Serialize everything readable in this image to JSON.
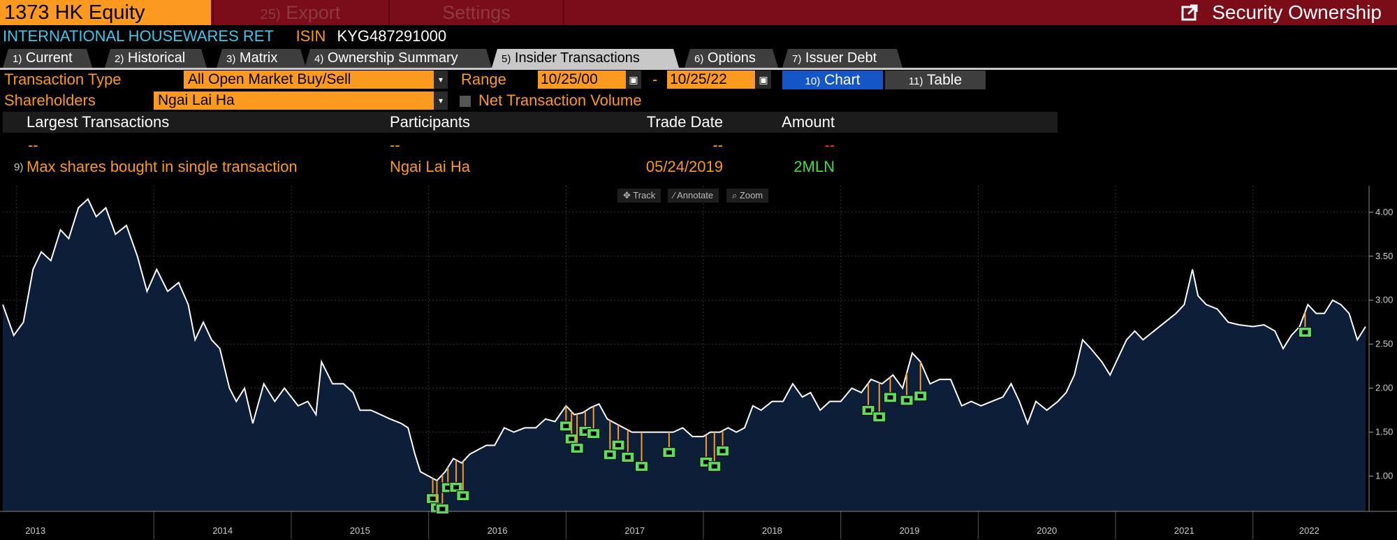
{
  "header": {
    "ticker": "1373 HK Equity",
    "export_num": "25)",
    "export_label": "Export",
    "settings_label": "Settings",
    "function_title": "Security Ownership"
  },
  "security": {
    "name": "INTERNATIONAL HOUSEWARES RET",
    "isin_label": "ISIN",
    "isin": "KYG487291000"
  },
  "tabs": [
    {
      "num": "1)",
      "label": "Current"
    },
    {
      "num": "2)",
      "label": "Historical"
    },
    {
      "num": "3)",
      "label": "Matrix"
    },
    {
      "num": "4)",
      "label": "Ownership Summary"
    },
    {
      "num": "5)",
      "label": "Insider Transactions",
      "active": true
    },
    {
      "num": "6)",
      "label": "Options"
    },
    {
      "num": "7)",
      "label": "Issuer Debt"
    }
  ],
  "filters": {
    "transaction_type_label": "Transaction Type",
    "transaction_type_value": "All Open Market Buy/Sell",
    "range_label": "Range",
    "range_from": "10/25/00",
    "range_sep": "-",
    "range_to": "10/25/22",
    "chart_btn_num": "10)",
    "chart_btn": "Chart",
    "table_btn_num": "11)",
    "table_btn": "Table",
    "shareholders_label": "Shareholders",
    "shareholders_value": "Ngai Lai Ha",
    "net_volume_label": "Net Transaction Volume"
  },
  "largest_table": {
    "headers": [
      "Largest Transactions",
      "Participants",
      "Trade Date",
      "Amount"
    ],
    "rows": [
      {
        "num": "",
        "label": "--",
        "participant": "--",
        "date": "--",
        "amount": "--"
      },
      {
        "num": "9)",
        "label": "Max shares bought in single transaction",
        "participant": "Ngai Lai Ha",
        "date": "05/24/2019",
        "amount": "2MLN"
      }
    ]
  },
  "chart_tools": [
    "Track",
    "Annotate",
    "Zoom"
  ],
  "colors": {
    "orange": "#fb9a1e",
    "header_red": "#7a0d18",
    "cyan": "#3ec8ec",
    "green": "#44dd44",
    "red": "#ff3333",
    "chart_fill": "#0d1e38",
    "buy_marker": "#5fdc5f"
  },
  "chart_data": {
    "type": "area",
    "x_ticks": [
      "2013",
      "2014",
      "2015",
      "2016",
      "2017",
      "2018",
      "2019",
      "2020",
      "2021",
      "2022"
    ],
    "y_ticks": [
      "1.00",
      "1.50",
      "2.00",
      "2.50",
      "3.00",
      "3.50",
      "4.00"
    ],
    "ylim": [
      0.6,
      4.3
    ],
    "xlim": [
      2012.9,
      2022.82
    ],
    "grid": true,
    "series": [
      {
        "values": [
          [
            2012.9,
            2.95
          ],
          [
            2012.98,
            2.6
          ],
          [
            2013.05,
            2.75
          ],
          [
            2013.12,
            3.35
          ],
          [
            2013.18,
            3.55
          ],
          [
            2013.25,
            3.45
          ],
          [
            2013.32,
            3.8
          ],
          [
            2013.38,
            3.7
          ],
          [
            2013.45,
            4.05
          ],
          [
            2013.52,
            4.15
          ],
          [
            2013.58,
            3.95
          ],
          [
            2013.65,
            4.05
          ],
          [
            2013.72,
            3.75
          ],
          [
            2013.8,
            3.85
          ],
          [
            2013.88,
            3.5
          ],
          [
            2013.95,
            3.1
          ],
          [
            2014.02,
            3.35
          ],
          [
            2014.1,
            3.1
          ],
          [
            2014.18,
            3.2
          ],
          [
            2014.25,
            2.95
          ],
          [
            2014.3,
            2.55
          ],
          [
            2014.36,
            2.75
          ],
          [
            2014.42,
            2.55
          ],
          [
            2014.48,
            2.45
          ],
          [
            2014.55,
            2.0
          ],
          [
            2014.6,
            1.85
          ],
          [
            2014.66,
            2.0
          ],
          [
            2014.72,
            1.6
          ],
          [
            2014.8,
            2.05
          ],
          [
            2014.88,
            1.85
          ],
          [
            2014.95,
            2.0
          ],
          [
            2015.05,
            1.8
          ],
          [
            2015.12,
            1.85
          ],
          [
            2015.18,
            1.7
          ],
          [
            2015.22,
            2.3
          ],
          [
            2015.3,
            2.05
          ],
          [
            2015.38,
            2.05
          ],
          [
            2015.45,
            1.95
          ],
          [
            2015.5,
            1.75
          ],
          [
            2015.58,
            1.75
          ],
          [
            2015.65,
            1.7
          ],
          [
            2015.72,
            1.65
          ],
          [
            2015.8,
            1.6
          ],
          [
            2015.85,
            1.55
          ],
          [
            2015.9,
            1.25
          ],
          [
            2015.94,
            1.05
          ],
          [
            2016.0,
            1.0
          ],
          [
            2016.06,
            0.95
          ],
          [
            2016.12,
            1.05
          ],
          [
            2016.18,
            1.2
          ],
          [
            2016.24,
            1.15
          ],
          [
            2016.3,
            1.25
          ],
          [
            2016.36,
            1.3
          ],
          [
            2016.42,
            1.35
          ],
          [
            2016.48,
            1.35
          ],
          [
            2016.55,
            1.55
          ],
          [
            2016.62,
            1.5
          ],
          [
            2016.7,
            1.55
          ],
          [
            2016.78,
            1.55
          ],
          [
            2016.85,
            1.65
          ],
          [
            2016.92,
            1.62
          ],
          [
            2017.0,
            1.8
          ],
          [
            2017.06,
            1.7
          ],
          [
            2017.12,
            1.72
          ],
          [
            2017.18,
            1.78
          ],
          [
            2017.24,
            1.82
          ],
          [
            2017.3,
            1.65
          ],
          [
            2017.36,
            1.6
          ],
          [
            2017.42,
            1.55
          ],
          [
            2017.48,
            1.5
          ],
          [
            2017.55,
            1.5
          ],
          [
            2017.62,
            1.5
          ],
          [
            2017.7,
            1.5
          ],
          [
            2017.78,
            1.5
          ],
          [
            2017.85,
            1.55
          ],
          [
            2017.92,
            1.45
          ],
          [
            2018.0,
            1.45
          ],
          [
            2018.05,
            1.5
          ],
          [
            2018.12,
            1.5
          ],
          [
            2018.18,
            1.55
          ],
          [
            2018.24,
            1.5
          ],
          [
            2018.3,
            1.55
          ],
          [
            2018.36,
            1.8
          ],
          [
            2018.42,
            1.75
          ],
          [
            2018.5,
            1.85
          ],
          [
            2018.58,
            1.85
          ],
          [
            2018.65,
            2.05
          ],
          [
            2018.72,
            1.9
          ],
          [
            2018.78,
            1.95
          ],
          [
            2018.85,
            1.75
          ],
          [
            2018.92,
            1.85
          ],
          [
            2019.0,
            1.85
          ],
          [
            2019.08,
            2.0
          ],
          [
            2019.15,
            1.95
          ],
          [
            2019.22,
            2.1
          ],
          [
            2019.3,
            2.05
          ],
          [
            2019.38,
            2.15
          ],
          [
            2019.45,
            2.0
          ],
          [
            2019.52,
            2.4
          ],
          [
            2019.58,
            2.3
          ],
          [
            2019.65,
            2.05
          ],
          [
            2019.72,
            2.1
          ],
          [
            2019.8,
            2.1
          ],
          [
            2019.88,
            1.8
          ],
          [
            2019.95,
            1.85
          ],
          [
            2020.02,
            1.8
          ],
          [
            2020.1,
            1.85
          ],
          [
            2020.18,
            1.9
          ],
          [
            2020.24,
            2.05
          ],
          [
            2020.3,
            1.85
          ],
          [
            2020.36,
            1.6
          ],
          [
            2020.42,
            1.85
          ],
          [
            2020.5,
            1.75
          ],
          [
            2020.58,
            1.85
          ],
          [
            2020.64,
            1.95
          ],
          [
            2020.7,
            2.15
          ],
          [
            2020.76,
            2.55
          ],
          [
            2020.82,
            2.45
          ],
          [
            2020.9,
            2.3
          ],
          [
            2020.96,
            2.15
          ],
          [
            2021.02,
            2.35
          ],
          [
            2021.08,
            2.55
          ],
          [
            2021.14,
            2.65
          ],
          [
            2021.2,
            2.55
          ],
          [
            2021.28,
            2.65
          ],
          [
            2021.36,
            2.75
          ],
          [
            2021.44,
            2.85
          ],
          [
            2021.5,
            2.95
          ],
          [
            2021.56,
            3.35
          ],
          [
            2021.6,
            3.05
          ],
          [
            2021.66,
            2.95
          ],
          [
            2021.74,
            2.9
          ],
          [
            2021.82,
            2.75
          ],
          [
            2021.9,
            2.72
          ],
          [
            2022.0,
            2.7
          ],
          [
            2022.08,
            2.72
          ],
          [
            2022.16,
            2.65
          ],
          [
            2022.22,
            2.45
          ],
          [
            2022.28,
            2.6
          ],
          [
            2022.34,
            2.7
          ],
          [
            2022.4,
            2.95
          ],
          [
            2022.46,
            2.85
          ],
          [
            2022.52,
            2.85
          ],
          [
            2022.58,
            3.0
          ],
          [
            2022.64,
            2.95
          ],
          [
            2022.7,
            2.85
          ],
          [
            2022.76,
            2.55
          ],
          [
            2022.82,
            2.7
          ]
        ]
      }
    ],
    "buy_marker_dates": [
      2016.03,
      2016.06,
      2016.1,
      2016.14,
      2016.2,
      2016.25,
      2017.0,
      2017.04,
      2017.08,
      2017.14,
      2017.2,
      2017.32,
      2017.38,
      2017.45,
      2017.55,
      2017.75,
      2018.02,
      2018.08,
      2018.14,
      2019.2,
      2019.28,
      2019.36,
      2019.48,
      2019.58,
      2022.38
    ]
  }
}
